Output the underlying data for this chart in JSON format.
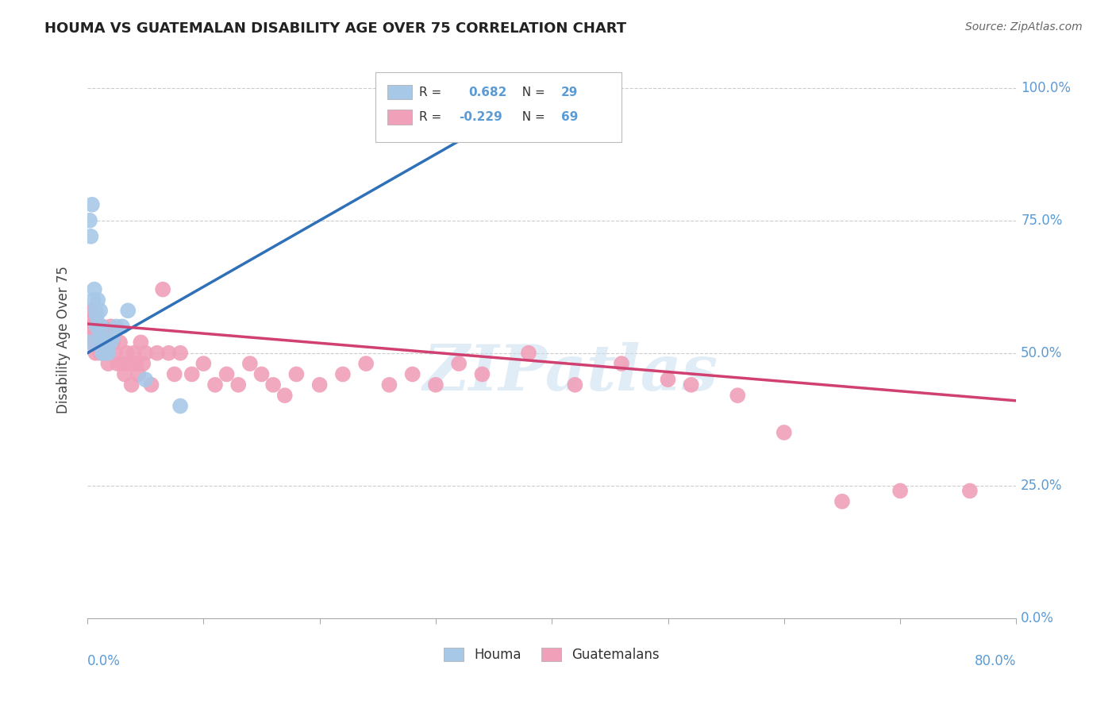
{
  "title": "HOUMA VS GUATEMALAN DISABILITY AGE OVER 75 CORRELATION CHART",
  "source": "Source: ZipAtlas.com",
  "ylabel": "Disability Age Over 75",
  "watermark": "ZIPatlas",
  "houma_R": 0.682,
  "houma_N": 29,
  "guatemalan_R": -0.229,
  "guatemalan_N": 69,
  "ytick_labels": [
    "0.0%",
    "25.0%",
    "50.0%",
    "75.0%",
    "100.0%"
  ],
  "ytick_values": [
    0.0,
    0.25,
    0.5,
    0.75,
    1.0
  ],
  "xmin": 0.0,
  "xmax": 0.8,
  "ymin": 0.0,
  "ymax": 1.05,
  "houma_color": "#a8c8e8",
  "houma_line_color": "#3070b8",
  "guatemalan_color": "#f0a0b8",
  "guatemalan_line_color": "#d04070",
  "background_color": "#ffffff",
  "grid_color": "#cccccc",
  "title_fontsize": 13,
  "axis_label_color": "#5b9bd5",
  "houma_pts_x": [
    0.001,
    0.002,
    0.003,
    0.004,
    0.005,
    0.006,
    0.007,
    0.008,
    0.008,
    0.009,
    0.01,
    0.011,
    0.011,
    0.012,
    0.012,
    0.013,
    0.013,
    0.014,
    0.015,
    0.016,
    0.017,
    0.018,
    0.02,
    0.022,
    0.025,
    0.03,
    0.035,
    0.05,
    0.08
  ],
  "houma_pts_y": [
    0.52,
    0.75,
    0.72,
    0.78,
    0.6,
    0.62,
    0.58,
    0.55,
    0.57,
    0.6,
    0.53,
    0.55,
    0.58,
    0.52,
    0.55,
    0.53,
    0.5,
    0.52,
    0.5,
    0.52,
    0.51,
    0.5,
    0.52,
    0.53,
    0.55,
    0.55,
    0.58,
    0.45,
    0.4
  ],
  "guat_pts_x": [
    0.001,
    0.002,
    0.003,
    0.004,
    0.005,
    0.006,
    0.007,
    0.008,
    0.009,
    0.01,
    0.011,
    0.012,
    0.013,
    0.014,
    0.015,
    0.016,
    0.017,
    0.018,
    0.019,
    0.02,
    0.022,
    0.024,
    0.026,
    0.028,
    0.03,
    0.032,
    0.034,
    0.036,
    0.038,
    0.04,
    0.042,
    0.044,
    0.046,
    0.048,
    0.05,
    0.055,
    0.06,
    0.065,
    0.07,
    0.075,
    0.08,
    0.09,
    0.1,
    0.11,
    0.12,
    0.13,
    0.14,
    0.15,
    0.16,
    0.17,
    0.18,
    0.2,
    0.22,
    0.24,
    0.26,
    0.28,
    0.3,
    0.32,
    0.34,
    0.38,
    0.42,
    0.46,
    0.5,
    0.52,
    0.56,
    0.6,
    0.65,
    0.7,
    0.76
  ],
  "guat_pts_y": [
    0.55,
    0.57,
    0.54,
    0.58,
    0.52,
    0.54,
    0.5,
    0.56,
    0.52,
    0.54,
    0.5,
    0.52,
    0.55,
    0.52,
    0.5,
    0.5,
    0.52,
    0.48,
    0.52,
    0.55,
    0.52,
    0.5,
    0.48,
    0.52,
    0.48,
    0.46,
    0.5,
    0.48,
    0.44,
    0.5,
    0.48,
    0.46,
    0.52,
    0.48,
    0.5,
    0.44,
    0.5,
    0.62,
    0.5,
    0.46,
    0.5,
    0.46,
    0.48,
    0.44,
    0.46,
    0.44,
    0.48,
    0.46,
    0.44,
    0.42,
    0.46,
    0.44,
    0.46,
    0.48,
    0.44,
    0.46,
    0.44,
    0.48,
    0.46,
    0.5,
    0.44,
    0.48,
    0.45,
    0.44,
    0.42,
    0.35,
    0.22,
    0.24,
    0.24
  ],
  "houma_line_x0": 0.0,
  "houma_line_y0": 0.5,
  "houma_line_x1": 0.4,
  "houma_line_y1": 1.0,
  "guat_line_x0": 0.0,
  "guat_line_y0": 0.555,
  "guat_line_x1": 0.8,
  "guat_line_y1": 0.41
}
